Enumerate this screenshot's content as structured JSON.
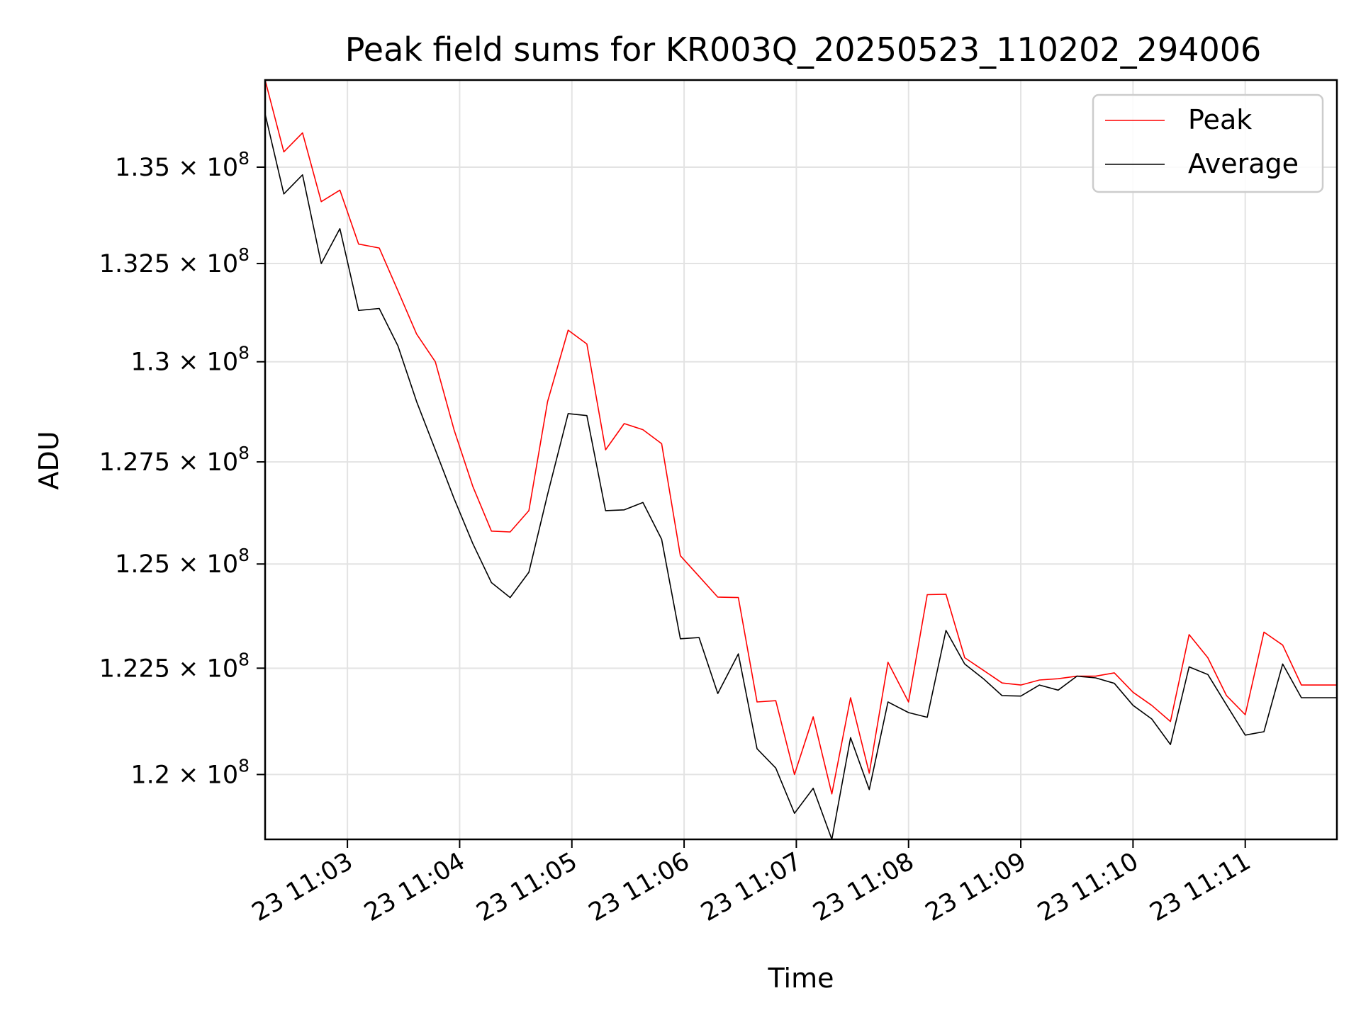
{
  "chart_data": {
    "type": "line",
    "title": "Peak field sums for KR003Q_20250523_110202_294006",
    "xlabel": "Time",
    "ylabel": "ADU",
    "grid": true,
    "legend_position": "top-right",
    "yscale": "log",
    "ylim": [
      118500000,
      137300000
    ],
    "xlim": [
      "11:02:16",
      "11:11:49"
    ],
    "x_ticks": [
      {
        "time": "11:03:00",
        "label": "23 11:03"
      },
      {
        "time": "11:04:00",
        "label": "23 11:04"
      },
      {
        "time": "11:05:00",
        "label": "23 11:05"
      },
      {
        "time": "11:06:00",
        "label": "23 11:06"
      },
      {
        "time": "11:07:00",
        "label": "23 11:07"
      },
      {
        "time": "11:08:00",
        "label": "23 11:08"
      },
      {
        "time": "11:09:00",
        "label": "23 11:09"
      },
      {
        "time": "11:10:00",
        "label": "23 11:10"
      },
      {
        "time": "11:11:00",
        "label": "23 11:11"
      }
    ],
    "y_ticks": [
      {
        "value": 120000000,
        "mantissa": "1.2"
      },
      {
        "value": 122500000,
        "mantissa": "1.225"
      },
      {
        "value": 125000000,
        "mantissa": "1.25"
      },
      {
        "value": 127500000,
        "mantissa": "1.275"
      },
      {
        "value": 130000000,
        "mantissa": "1.3"
      },
      {
        "value": 132500000,
        "mantissa": "1.325"
      },
      {
        "value": 135000000,
        "mantissa": "1.35"
      }
    ],
    "y_tick_suffix": "× 10",
    "y_tick_exponent": "8",
    "x": [
      "11:02:16",
      "11:02:26",
      "11:02:36",
      "11:02:46",
      "11:02:56",
      "11:03:06",
      "11:03:17",
      "11:03:27",
      "11:03:37",
      "11:03:47",
      "11:03:57",
      "11:04:07",
      "11:04:17",
      "11:04:27",
      "11:04:37",
      "11:04:47",
      "11:04:58",
      "11:05:08",
      "11:05:18",
      "11:05:28",
      "11:05:38",
      "11:05:48",
      "11:05:58",
      "11:06:08",
      "11:06:18",
      "11:06:29",
      "11:06:39",
      "11:06:49",
      "11:06:59",
      "11:07:09",
      "11:07:19",
      "11:07:29",
      "11:07:39",
      "11:07:49",
      "11:08:00",
      "11:08:10",
      "11:08:20",
      "11:08:30",
      "11:08:40",
      "11:08:50",
      "11:09:00",
      "11:09:10",
      "11:09:20",
      "11:09:30",
      "11:09:40",
      "11:09:50",
      "11:10:00",
      "11:10:10",
      "11:10:20",
      "11:10:30",
      "11:10:40",
      "11:10:50",
      "11:11:00",
      "11:11:10",
      "11:11:20",
      "11:11:30",
      "11:11:40",
      "11:11:49"
    ],
    "series": [
      {
        "name": "Peak",
        "color": "#ff0000",
        "values": [
          137300000,
          135400000,
          135900000,
          134100000,
          134400000,
          133000000,
          132900000,
          131800000,
          130700000,
          130000000,
          128300000,
          126900000,
          125800000,
          125780000,
          126300000,
          129000000,
          130800000,
          130450000,
          127800000,
          128450000,
          128300000,
          127950000,
          125200000,
          124700000,
          124200000,
          124190000,
          121700000,
          121730000,
          120000000,
          121350000,
          119550000,
          121800000,
          120030000,
          122640000,
          121700000,
          124260000,
          124270000,
          122750000,
          122450000,
          122150000,
          122100000,
          122220000,
          122250000,
          122310000,
          122310000,
          122390000,
          121930000,
          121620000,
          121240000,
          123300000,
          122750000,
          121850000,
          121400000,
          123360000,
          123050000,
          122100000,
          122100000,
          122100000
        ]
      },
      {
        "name": "Average",
        "color": "#000000",
        "values": [
          136400000,
          134300000,
          134800000,
          132500000,
          133400000,
          131300000,
          131350000,
          130400000,
          129000000,
          127800000,
          126600000,
          125500000,
          124550000,
          124190000,
          124800000,
          126700000,
          128700000,
          128650000,
          126300000,
          126320000,
          126500000,
          125600000,
          123200000,
          123230000,
          121900000,
          122840000,
          120600000,
          120150000,
          119100000,
          119680000,
          118500000,
          120860000,
          119650000,
          121700000,
          121450000,
          121340000,
          123400000,
          122600000,
          122250000,
          121850000,
          121840000,
          122100000,
          121980000,
          122310000,
          122270000,
          122140000,
          121620000,
          121300000,
          120700000,
          122530000,
          122350000,
          121630000,
          120920000,
          121000000,
          122600000,
          121800000,
          121800000,
          121800000
        ]
      }
    ]
  }
}
